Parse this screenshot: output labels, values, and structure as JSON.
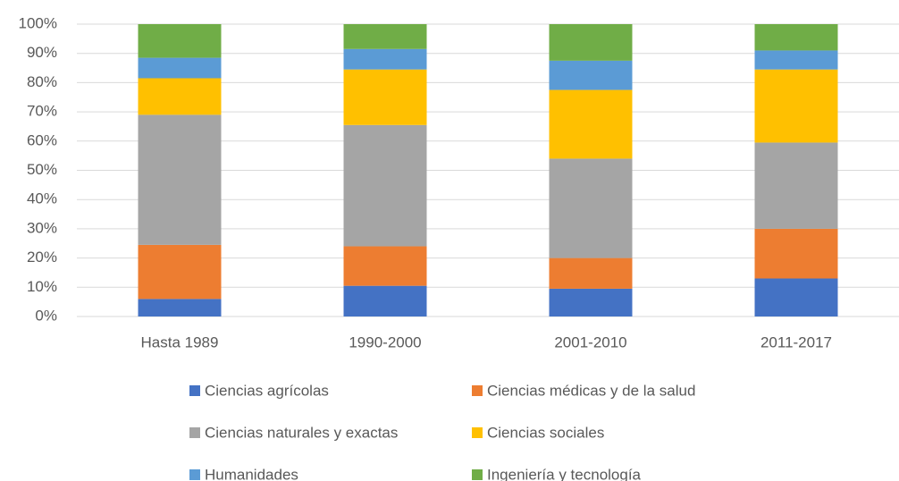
{
  "chart_data": {
    "type": "stacked_bar",
    "categories": [
      "Hasta 1989",
      "1990-2000",
      "2001-2010",
      "2011-2017"
    ],
    "series": [
      {
        "name": "Ciencias agrícolas",
        "color": "#4472c4",
        "values": [
          6,
          10.5,
          9.5,
          13
        ]
      },
      {
        "name": "Ciencias médicas y de la salud",
        "color": "#ed7d31",
        "values": [
          18.5,
          13.5,
          10.5,
          17
        ]
      },
      {
        "name": "Ciencias naturales y exactas",
        "color": "#a5a5a5",
        "values": [
          44.5,
          41.5,
          34,
          29.5
        ]
      },
      {
        "name": "Ciencias sociales",
        "color": "#ffc000",
        "values": [
          12.5,
          19,
          23.5,
          25
        ]
      },
      {
        "name": "Humanidades",
        "color": "#5b9bd5",
        "values": [
          7,
          7,
          10,
          6.5
        ]
      },
      {
        "name": "Ingeniería y tecnología",
        "color": "#70ad47",
        "values": [
          11.5,
          8.5,
          12.5,
          9
        ]
      }
    ],
    "ylim": [
      0,
      100
    ],
    "yticks": [
      {
        "value": 0,
        "label": "0%"
      },
      {
        "value": 10,
        "label": "10%"
      },
      {
        "value": 20,
        "label": "20%"
      },
      {
        "value": 30,
        "label": "30%"
      },
      {
        "value": 40,
        "label": "40%"
      },
      {
        "value": 50,
        "label": "50%"
      },
      {
        "value": 60,
        "label": "60%"
      },
      {
        "value": 70,
        "label": "70%"
      },
      {
        "value": 80,
        "label": "80%"
      },
      {
        "value": 90,
        "label": "90%"
      },
      {
        "value": 100,
        "label": "100%"
      }
    ],
    "grid": true,
    "legend": "bottom"
  }
}
